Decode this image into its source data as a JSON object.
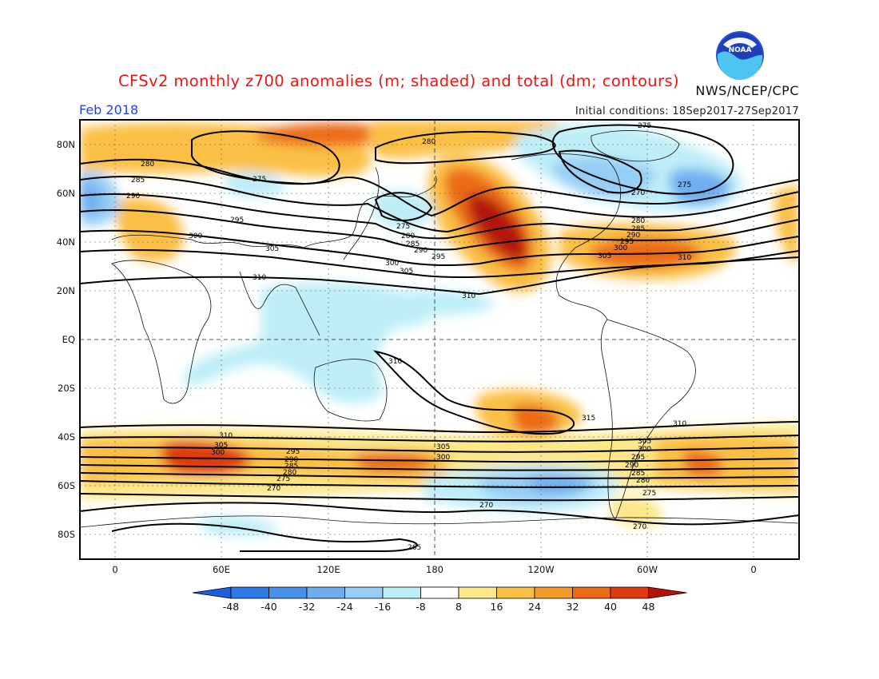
{
  "title": "CFSv2 monthly z700 anomalies (m; shaded) and total (dm; contours)",
  "agency": "NWS/NCEP/CPC",
  "logo_text": "NOAA",
  "month": "Feb 2018",
  "initial_conditions": "Initial conditions: 18Sep2017-27Sep2017",
  "lat_labels": [
    "80N",
    "60N",
    "40N",
    "20N",
    "EQ",
    "20S",
    "40S",
    "60S",
    "80S"
  ],
  "lon_labels": [
    "0",
    "60E",
    "120E",
    "180",
    "120W",
    "60W",
    "0"
  ],
  "colorbar": {
    "labels": [
      "-48",
      "-40",
      "-32",
      "-24",
      "-16",
      "-8",
      "8",
      "16",
      "24",
      "32",
      "40",
      "48"
    ],
    "colors": [
      "#1e5ee0",
      "#2f78e8",
      "#4890ea",
      "#6eaef0",
      "#96cdf5",
      "#bdeef8",
      "#ffffff",
      "#fde787",
      "#fbbf45",
      "#f39a28",
      "#ec6a16",
      "#df3a0f",
      "#b4120a"
    ]
  },
  "contour_labels": {
    "north_pacific": [
      "275",
      "280",
      "285",
      "290",
      "295",
      "300",
      "305"
    ],
    "north_america_atlantic": [
      "275",
      "270",
      "280",
      "285",
      "290",
      "295",
      "300",
      "305",
      "310"
    ],
    "eurasia": [
      "280",
      "285",
      "290",
      "295",
      "300",
      "305",
      "310",
      "275"
    ],
    "arctic": [
      "280",
      "275"
    ],
    "tropics": [
      "310",
      "310",
      "315",
      "310"
    ],
    "southern_midlatitudes": [
      "310",
      "305",
      "300",
      "295",
      "290",
      "285",
      "280",
      "275",
      "270"
    ],
    "south_pacific": [
      "305",
      "300",
      "270",
      "265"
    ],
    "south_atlantic": [
      "305",
      "300",
      "295",
      "290",
      "285",
      "280",
      "275",
      "270"
    ]
  }
}
